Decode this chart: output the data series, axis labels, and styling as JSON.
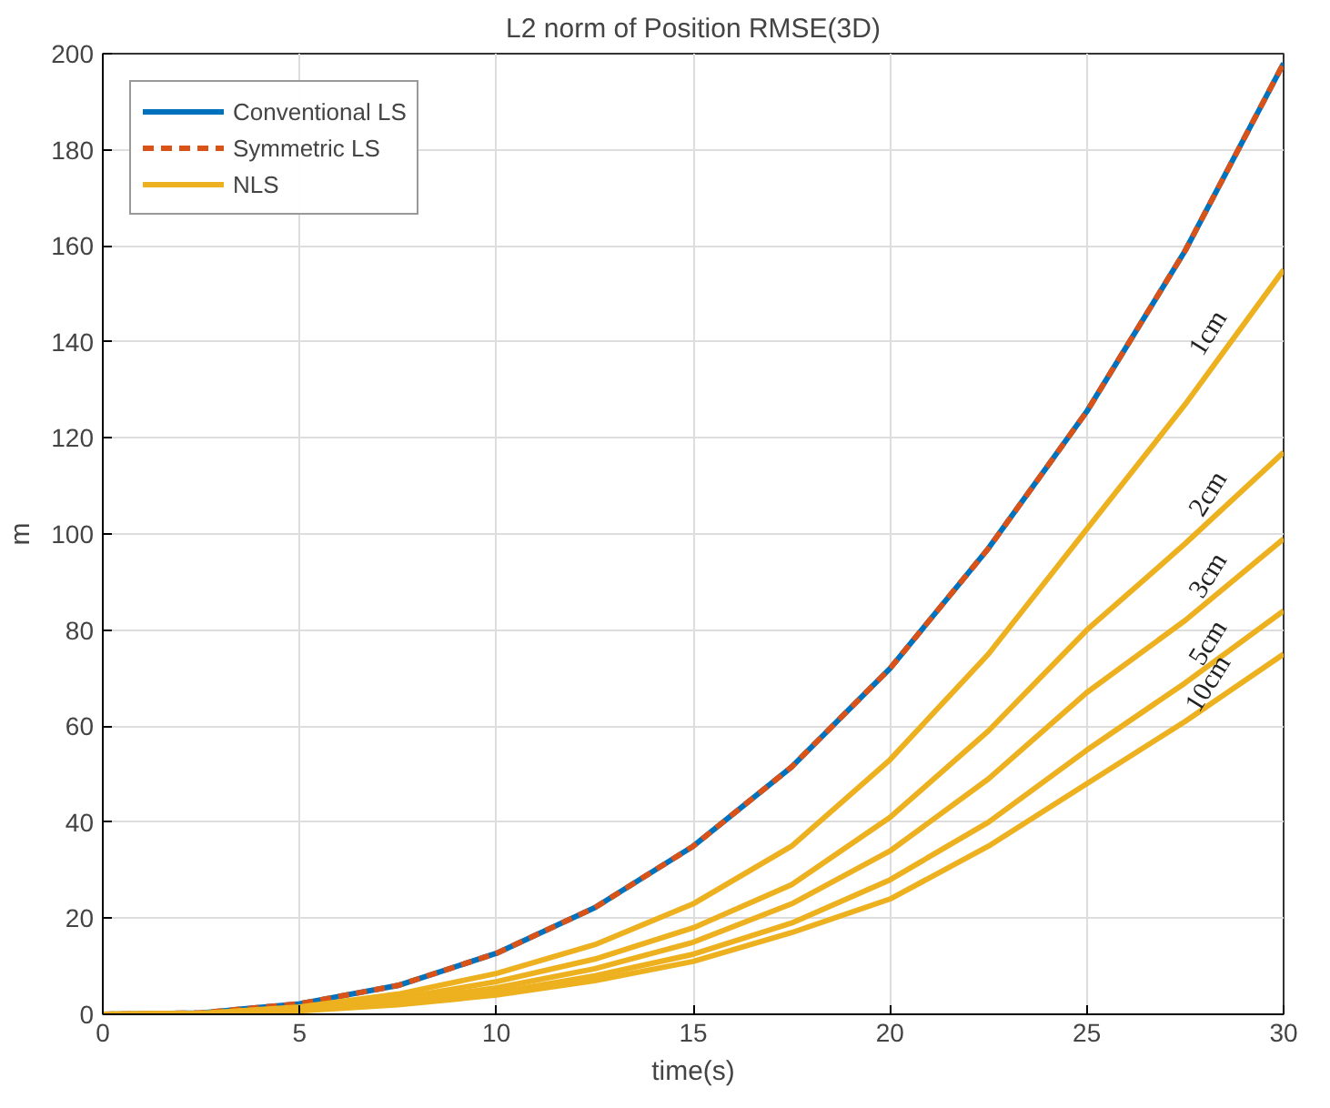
{
  "chart_data": {
    "type": "line",
    "title": "L2 norm of Position RMSE(3D)",
    "xlabel": "time(s)",
    "ylabel": "m",
    "x": [
      0,
      2.5,
      5,
      7.5,
      10,
      12.5,
      15,
      17.5,
      20,
      22.5,
      25,
      27.5,
      30
    ],
    "series": [
      {
        "name": "Conventional LS",
        "color": "#0072bd",
        "line_style": "solid",
        "values": [
          0,
          0.3,
          2.2,
          6.0,
          12.7,
          22.2,
          35.0,
          51.5,
          72,
          97,
          125.5,
          159,
          198
        ]
      },
      {
        "name": "Symmetric LS",
        "color": "#d95319",
        "line_style": "dashed",
        "values": [
          0,
          0.3,
          2.2,
          6.0,
          12.7,
          22.2,
          35.0,
          51.5,
          72,
          97,
          125.5,
          159,
          198
        ]
      },
      {
        "name": "NLS",
        "color": "#edb120",
        "line_style": "solid",
        "values": [
          0,
          0.2,
          1.5,
          4.2,
          8.5,
          14.5,
          23,
          35,
          53,
          75,
          101,
          127,
          155
        ]
      },
      {
        "color": "#edb120",
        "line_style": "solid",
        "values": [
          0,
          0.2,
          1.2,
          3.3,
          6.8,
          11.5,
          18,
          27,
          41,
          59,
          80,
          98,
          117
        ]
      },
      {
        "color": "#edb120",
        "line_style": "solid",
        "values": [
          0,
          0.1,
          1.0,
          2.8,
          5.5,
          9.5,
          15,
          23,
          34,
          49,
          67,
          82,
          99
        ]
      },
      {
        "color": "#edb120",
        "line_style": "solid",
        "values": [
          0,
          0.1,
          0.8,
          2.3,
          4.5,
          8,
          12.5,
          19,
          28,
          40,
          55,
          69,
          84
        ]
      },
      {
        "color": "#edb120",
        "line_style": "solid",
        "values": [
          0,
          0.1,
          0.7,
          2,
          4,
          7,
          11,
          17,
          24,
          35,
          48,
          61,
          75
        ]
      }
    ],
    "xlim": [
      0,
      30
    ],
    "ylim": [
      0,
      200
    ],
    "xticks": [
      0,
      5,
      10,
      15,
      20,
      25,
      30
    ],
    "yticks": [
      0,
      20,
      40,
      60,
      80,
      100,
      120,
      140,
      160,
      180,
      200
    ],
    "grid": true,
    "legend": "top left",
    "marker": "none",
    "annotations": [
      "1cm",
      "2cm",
      "3cm",
      "5cm",
      "10cm"
    ]
  }
}
